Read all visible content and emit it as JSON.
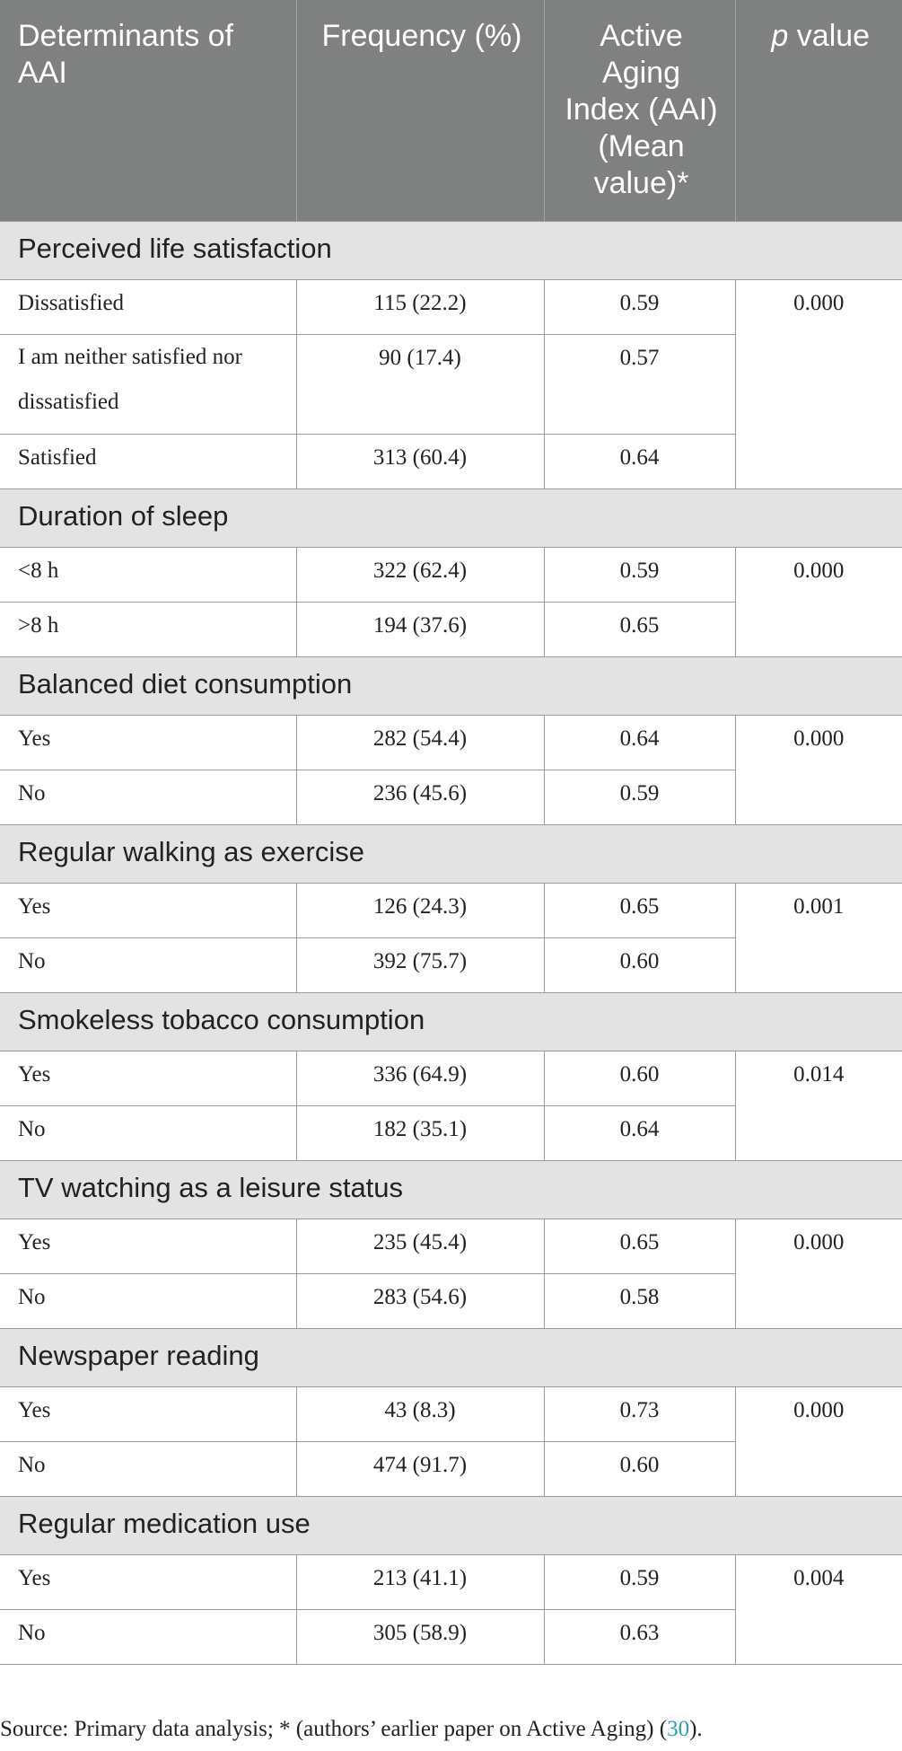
{
  "headers": {
    "col1": "Determinants of AAI",
    "col2": "Frequency (%)",
    "col3": "Active Aging Index (AAI) (Mean value)*",
    "col4_italic": "p",
    "col4_rest": " value"
  },
  "sections": [
    {
      "title": "Perceived life satisfaction",
      "p_value": "0.000",
      "rows": [
        {
          "label": "Dissatisfied",
          "freq": "115 (22.2)",
          "aai": "0.59"
        },
        {
          "label": "I am neither satisfied nor dissatisfied",
          "freq": "90 (17.4)",
          "aai": "0.57"
        },
        {
          "label": "Satisfied",
          "freq": "313 (60.4)",
          "aai": "0.64"
        }
      ]
    },
    {
      "title": "Duration of sleep",
      "p_value": "0.000",
      "rows": [
        {
          "label": "<8 h",
          "freq": "322 (62.4)",
          "aai": "0.59"
        },
        {
          "label": ">8 h",
          "freq": "194 (37.6)",
          "aai": "0.65"
        }
      ]
    },
    {
      "title": "Balanced diet consumption",
      "p_value": "0.000",
      "rows": [
        {
          "label": "Yes",
          "freq": "282 (54.4)",
          "aai": "0.64"
        },
        {
          "label": "No",
          "freq": "236 (45.6)",
          "aai": "0.59"
        }
      ]
    },
    {
      "title": "Regular walking as exercise",
      "p_value": "0.001",
      "rows": [
        {
          "label": "Yes",
          "freq": "126 (24.3)",
          "aai": "0.65"
        },
        {
          "label": "No",
          "freq": "392 (75.7)",
          "aai": "0.60"
        }
      ]
    },
    {
      "title": "Smokeless tobacco consumption",
      "p_value": "0.014",
      "rows": [
        {
          "label": "Yes",
          "freq": "336 (64.9)",
          "aai": "0.60"
        },
        {
          "label": "No",
          "freq": "182 (35.1)",
          "aai": "0.64"
        }
      ]
    },
    {
      "title": "TV watching as a leisure status",
      "p_value": "0.000",
      "rows": [
        {
          "label": "Yes",
          "freq": "235 (45.4)",
          "aai": "0.65"
        },
        {
          "label": "No",
          "freq": "283 (54.6)",
          "aai": "0.58"
        }
      ]
    },
    {
      "title": "Newspaper reading",
      "p_value": "0.000",
      "rows": [
        {
          "label": "Yes",
          "freq": "43 (8.3)",
          "aai": "0.73"
        },
        {
          "label": "No",
          "freq": "474 (91.7)",
          "aai": "0.60"
        }
      ]
    },
    {
      "title": "Regular medication use",
      "p_value": "0.004",
      "rows": [
        {
          "label": "Yes",
          "freq": "213 (41.1)",
          "aai": "0.59"
        },
        {
          "label": "No",
          "freq": "305 (58.9)",
          "aai": "0.63"
        }
      ]
    }
  ],
  "footnote": {
    "text": "Source: Primary data analysis; * (authors’ earlier paper on Active Aging) (",
    "ref": "30",
    "end": ")."
  },
  "colors": {
    "header_bg": "#7f8180",
    "section_bg": "#e3e3e3",
    "link": "#2a9fb2"
  }
}
